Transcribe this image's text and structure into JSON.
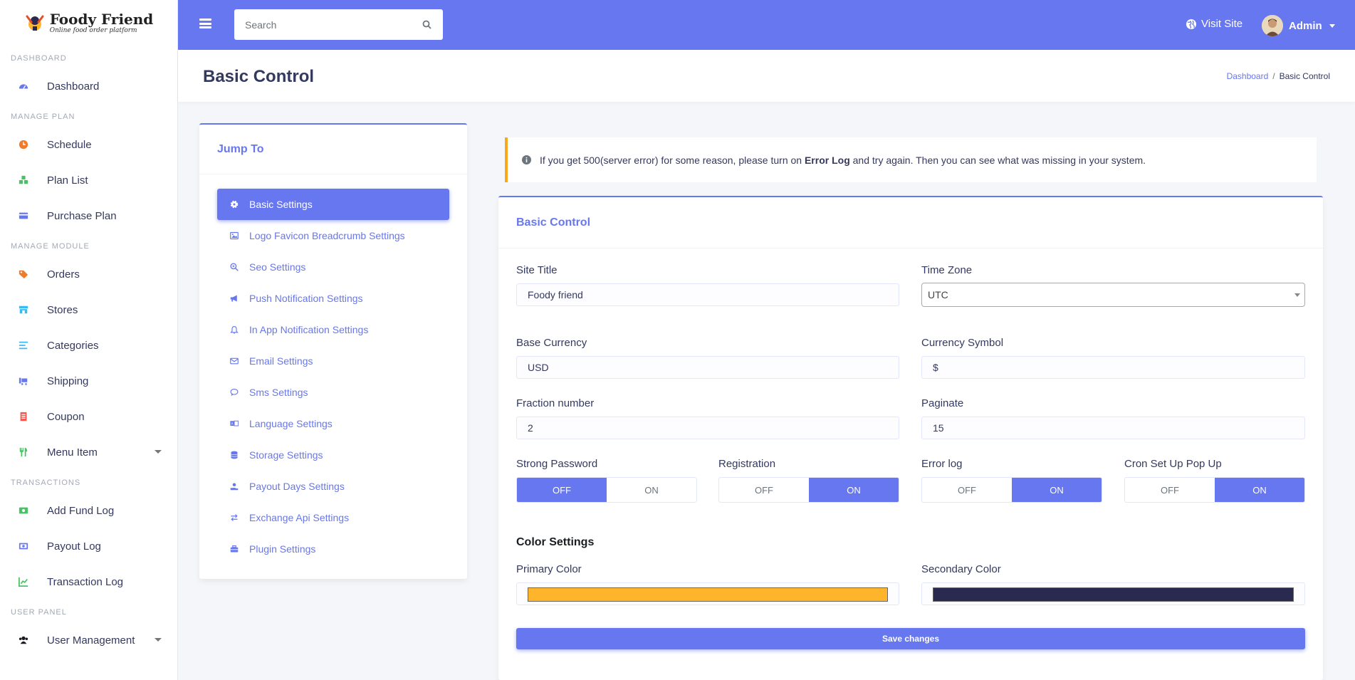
{
  "brand": {
    "name": "Foody Friend",
    "tagline": "Online food order platform"
  },
  "sidebar": {
    "sections": [
      {
        "header": "DASHBOARD",
        "items": [
          {
            "label": "Dashboard",
            "icon": "gauge-icon",
            "color": "#6777ef"
          }
        ]
      },
      {
        "header": "MANAGE PLAN",
        "items": [
          {
            "label": "Schedule",
            "icon": "clock-icon",
            "color": "#f07b2b"
          },
          {
            "label": "Plan List",
            "icon": "cubes-icon",
            "color": "#47c363"
          },
          {
            "label": "Purchase Plan",
            "icon": "credit-card-icon",
            "color": "#6777ef"
          }
        ]
      },
      {
        "header": "MANAGE MODULE",
        "items": [
          {
            "label": "Orders",
            "icon": "tags-icon",
            "color": "#f07b2b"
          },
          {
            "label": "Stores",
            "icon": "store-icon",
            "color": "#3abaf4"
          },
          {
            "label": "Categories",
            "icon": "list-icon",
            "color": "#3abaf4"
          },
          {
            "label": "Shipping",
            "icon": "truck-icon",
            "color": "#6777ef"
          },
          {
            "label": "Coupon",
            "icon": "coupon-icon",
            "color": "#fc544b"
          },
          {
            "label": "Menu Item",
            "icon": "utensils-icon",
            "color": "#47c363",
            "has_submenu": true
          }
        ]
      },
      {
        "header": "TRANSACTIONS",
        "items": [
          {
            "label": "Add Fund Log",
            "icon": "money-bill-icon",
            "color": "#47c363"
          },
          {
            "label": "Payout Log",
            "icon": "money-check-icon",
            "color": "#6777ef"
          },
          {
            "label": "Transaction Log",
            "icon": "chart-line-icon",
            "color": "#47c363"
          }
        ]
      },
      {
        "header": "USER PANEL",
        "items": [
          {
            "label": "User Management",
            "icon": "users-icon",
            "color": "#191d21",
            "has_submenu": true
          }
        ]
      }
    ]
  },
  "topbar": {
    "search_placeholder": "Search",
    "visit_site": "Visit Site",
    "user_name": "Admin",
    "bg_color": "#6777ef"
  },
  "page": {
    "title": "Basic Control",
    "breadcrumb": {
      "home": "Dashboard",
      "current": "Basic Control"
    }
  },
  "jump_to": {
    "title": "Jump To",
    "items": [
      {
        "label": "Basic Settings",
        "icon": "gear-icon",
        "active": true
      },
      {
        "label": "Logo Favicon Breadcrumb Settings",
        "icon": "image-icon"
      },
      {
        "label": "Seo Settings",
        "icon": "search-plus-icon"
      },
      {
        "label": "Push Notification Settings",
        "icon": "bullhorn-icon"
      },
      {
        "label": "In App Notification Settings",
        "icon": "bell-icon"
      },
      {
        "label": "Email Settings",
        "icon": "envelope-icon"
      },
      {
        "label": "Sms Settings",
        "icon": "comment-icon"
      },
      {
        "label": "Language Settings",
        "icon": "language-icon"
      },
      {
        "label": "Storage Settings",
        "icon": "database-icon"
      },
      {
        "label": "Payout Days Settings",
        "icon": "hand-holding-icon"
      },
      {
        "label": "Exchange Api Settings",
        "icon": "exchange-icon"
      },
      {
        "label": "Plugin Settings",
        "icon": "toolbox-icon"
      }
    ]
  },
  "alert": {
    "before": "If you get 500(server error) for some reason, please turn on ",
    "bold": "Error Log",
    "after": " and try again. Then you can see what was missing in your system."
  },
  "form": {
    "card_title": "Basic Control",
    "site_title": {
      "label": "Site Title",
      "value": "Foody friend"
    },
    "time_zone": {
      "label": "Time Zone",
      "value": "UTC"
    },
    "base_currency": {
      "label": "Base Currency",
      "value": "USD"
    },
    "currency_symbol": {
      "label": "Currency Symbol",
      "value": "$"
    },
    "fraction_number": {
      "label": "Fraction number",
      "value": "2"
    },
    "paginate": {
      "label": "Paginate",
      "value": "15"
    },
    "toggles": [
      {
        "label": "Strong Password",
        "off": "OFF",
        "on": "ON",
        "state": "off"
      },
      {
        "label": "Registration",
        "off": "OFF",
        "on": "ON",
        "state": "on"
      },
      {
        "label": "Error log",
        "off": "OFF",
        "on": "ON",
        "state": "on"
      },
      {
        "label": "Cron Set Up Pop Up",
        "off": "OFF",
        "on": "ON",
        "state": "on"
      }
    ],
    "color_settings": {
      "heading": "Color Settings",
      "primary": {
        "label": "Primary Color",
        "value": "#ffb52b"
      },
      "secondary": {
        "label": "Secondary Color",
        "value": "#2a2a50"
      }
    },
    "save_label": "Save changes"
  }
}
